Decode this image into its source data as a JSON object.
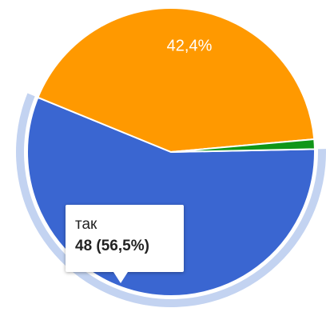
{
  "chart_data": {
    "type": "pie",
    "slices": [
      {
        "value": 56.5,
        "label": "56,5%",
        "color": "#3a66d1",
        "highlighted": true
      },
      {
        "value": 42.4,
        "label": "42,4%",
        "color": "#ff9900",
        "highlighted": false
      },
      {
        "value": 1.1,
        "label": "",
        "color": "#109618",
        "highlighted": false
      }
    ],
    "highlight_ring_color": "#c3d3f1"
  },
  "tooltip": {
    "label": "так",
    "value": "48 (56,5%)"
  }
}
